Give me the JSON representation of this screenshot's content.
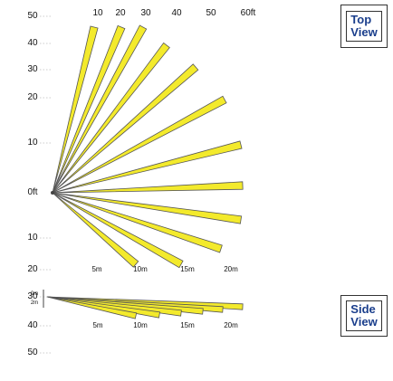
{
  "top_view": {
    "angle_labels_top": [
      "10",
      "20",
      "30",
      "40",
      "50",
      "60ft"
    ],
    "angle_labels_left": [
      "50",
      "40",
      "30",
      "20",
      "10",
      "0ft",
      "10",
      "20",
      "30",
      "40",
      "50"
    ],
    "distance_labels": [
      "5m",
      "10m",
      "15m",
      "20m"
    ],
    "button_label": "Top\nView"
  },
  "side_view": {
    "height_labels": [
      "0m",
      "2m"
    ],
    "distance_labels": [
      "5m",
      "10m",
      "15m",
      "20m"
    ],
    "button_label": "Side\nView"
  },
  "colors": {
    "beam_fill": "#f3ea2c",
    "beam_stroke": "#555555",
    "text": "#111111",
    "button_text": "#1a3e8c"
  },
  "coverage": {
    "beam_count": 12,
    "max_range_m": 20
  }
}
